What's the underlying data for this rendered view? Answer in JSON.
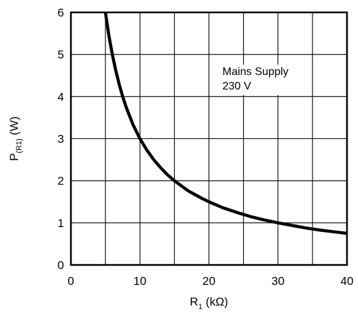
{
  "chart_data": {
    "type": "line",
    "title": "",
    "xlabel": {
      "main": "R",
      "sub": "1",
      "unit": " (kΩ)"
    },
    "ylabel": {
      "main": "P",
      "sub": "(R1)",
      "unit": " (W)"
    },
    "xlim": [
      0,
      40
    ],
    "ylim": [
      0,
      6
    ],
    "xticks": [
      0,
      10,
      20,
      30,
      40
    ],
    "yticks": [
      0,
      1,
      2,
      3,
      4,
      5,
      6
    ],
    "x_gridlines": [
      5,
      10,
      15,
      20,
      25,
      30,
      35
    ],
    "y_gridlines": [
      1,
      2,
      3,
      4,
      5
    ],
    "grid": true,
    "series": [
      {
        "formula": "P = 30 / R",
        "x": [
          4.6,
          5,
          5.5,
          6,
          6.5,
          7,
          7.5,
          8,
          9,
          10,
          11,
          12,
          13,
          14,
          15,
          16,
          17,
          18,
          19,
          20,
          22,
          24,
          26,
          28,
          30,
          32,
          34,
          36,
          38,
          40
        ],
        "y": [
          6.52,
          6.0,
          5.45,
          5.0,
          4.62,
          4.29,
          4.0,
          3.75,
          3.33,
          3.0,
          2.73,
          2.5,
          2.31,
          2.14,
          2.0,
          1.88,
          1.76,
          1.67,
          1.58,
          1.5,
          1.36,
          1.25,
          1.15,
          1.07,
          1.0,
          0.94,
          0.88,
          0.83,
          0.79,
          0.75
        ],
        "color": "#000000"
      }
    ],
    "annotation": {
      "lines": [
        "Mains Supply",
        "230 V"
      ]
    }
  }
}
